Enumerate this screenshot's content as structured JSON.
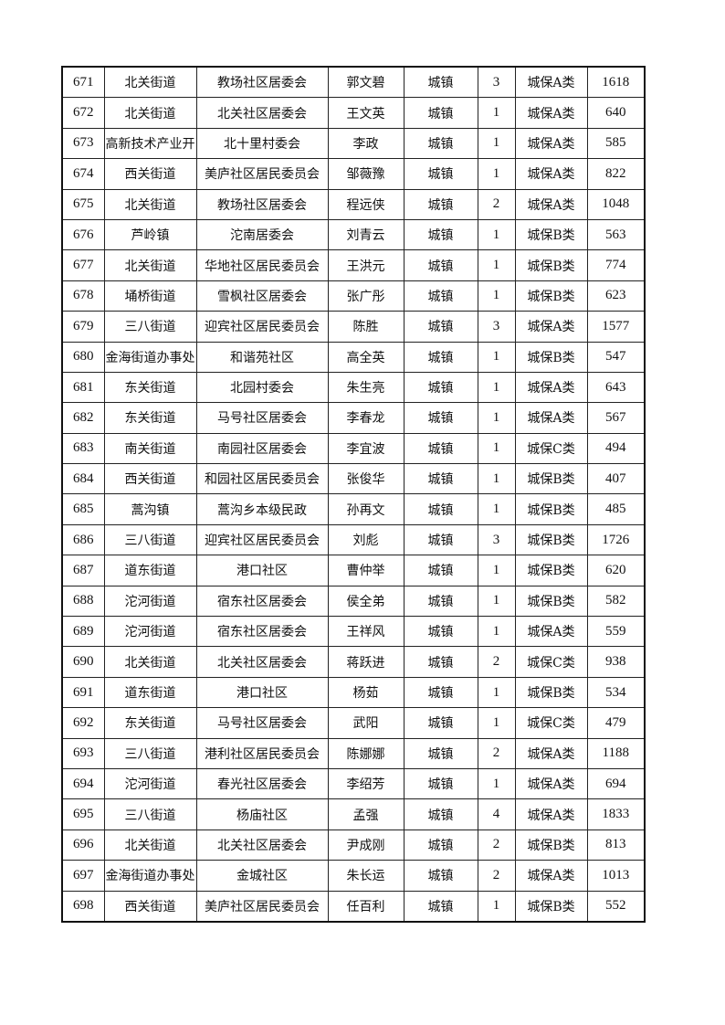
{
  "table": {
    "rows": [
      [
        "671",
        "北关街道",
        "教场社区居委会",
        "郭文碧",
        "城镇",
        "3",
        "城保A类",
        "1618"
      ],
      [
        "672",
        "北关街道",
        "北关社区居委会",
        "王文英",
        "城镇",
        "1",
        "城保A类",
        "640"
      ],
      [
        "673",
        "高新技术产业开",
        "北十里村委会",
        "李政",
        "城镇",
        "1",
        "城保A类",
        "585"
      ],
      [
        "674",
        "西关街道",
        "美庐社区居民委员会",
        "邹薇豫",
        "城镇",
        "1",
        "城保A类",
        "822"
      ],
      [
        "675",
        "北关街道",
        "教场社区居委会",
        "程远侠",
        "城镇",
        "2",
        "城保A类",
        "1048"
      ],
      [
        "676",
        "芦岭镇",
        "沱南居委会",
        "刘青云",
        "城镇",
        "1",
        "城保B类",
        "563"
      ],
      [
        "677",
        "北关街道",
        "华地社区居民委员会",
        "王洪元",
        "城镇",
        "1",
        "城保B类",
        "774"
      ],
      [
        "678",
        "埇桥街道",
        "雪枫社区居委会",
        "张广彤",
        "城镇",
        "1",
        "城保B类",
        "623"
      ],
      [
        "679",
        "三八街道",
        "迎宾社区居民委员会",
        "陈胜",
        "城镇",
        "3",
        "城保A类",
        "1577"
      ],
      [
        "680",
        "金海街道办事处",
        "和谐苑社区",
        "高全英",
        "城镇",
        "1",
        "城保B类",
        "547"
      ],
      [
        "681",
        "东关街道",
        "北园村委会",
        "朱生亮",
        "城镇",
        "1",
        "城保A类",
        "643"
      ],
      [
        "682",
        "东关街道",
        "马号社区居委会",
        "李春龙",
        "城镇",
        "1",
        "城保A类",
        "567"
      ],
      [
        "683",
        "南关街道",
        "南园社区居委会",
        "李宜波",
        "城镇",
        "1",
        "城保C类",
        "494"
      ],
      [
        "684",
        "西关街道",
        "和园社区居民委员会",
        "张俊华",
        "城镇",
        "1",
        "城保B类",
        "407"
      ],
      [
        "685",
        "蒿沟镇",
        "蒿沟乡本级民政",
        "孙再文",
        "城镇",
        "1",
        "城保B类",
        "485"
      ],
      [
        "686",
        "三八街道",
        "迎宾社区居民委员会",
        "刘彪",
        "城镇",
        "3",
        "城保B类",
        "1726"
      ],
      [
        "687",
        "道东街道",
        "港口社区",
        "曹仲举",
        "城镇",
        "1",
        "城保B类",
        "620"
      ],
      [
        "688",
        "沱河街道",
        "宿东社区居委会",
        "侯全弟",
        "城镇",
        "1",
        "城保B类",
        "582"
      ],
      [
        "689",
        "沱河街道",
        "宿东社区居委会",
        "王祥风",
        "城镇",
        "1",
        "城保A类",
        "559"
      ],
      [
        "690",
        "北关街道",
        "北关社区居委会",
        "蒋跃进",
        "城镇",
        "2",
        "城保C类",
        "938"
      ],
      [
        "691",
        "道东街道",
        "港口社区",
        "杨茹",
        "城镇",
        "1",
        "城保B类",
        "534"
      ],
      [
        "692",
        "东关街道",
        "马号社区居委会",
        "武阳",
        "城镇",
        "1",
        "城保C类",
        "479"
      ],
      [
        "693",
        "三八街道",
        "港利社区居民委员会",
        "陈娜娜",
        "城镇",
        "2",
        "城保A类",
        "1188"
      ],
      [
        "694",
        "沱河街道",
        "春光社区居委会",
        "李绍芳",
        "城镇",
        "1",
        "城保A类",
        "694"
      ],
      [
        "695",
        "三八街道",
        "杨庙社区",
        "孟强",
        "城镇",
        "4",
        "城保A类",
        "1833"
      ],
      [
        "696",
        "北关街道",
        "北关社区居委会",
        "尹成刚",
        "城镇",
        "2",
        "城保B类",
        "813"
      ],
      [
        "697",
        "金海街道办事处",
        "金城社区",
        "朱长运",
        "城镇",
        "2",
        "城保A类",
        "1013"
      ],
      [
        "698",
        "西关街道",
        "美庐社区居民委员会",
        "任百利",
        "城镇",
        "1",
        "城保B类",
        "552"
      ]
    ]
  }
}
